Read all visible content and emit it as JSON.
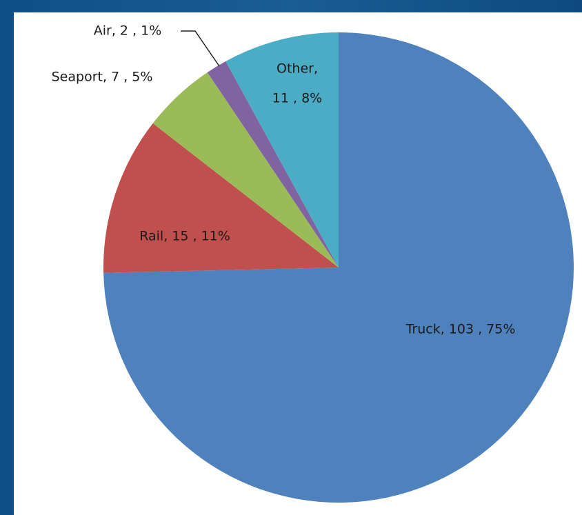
{
  "chart_data": {
    "type": "pie",
    "values": [
      103,
      15,
      7,
      2,
      11
    ],
    "value_labels": [
      "Truck, 103 , 75%",
      "Rail,  15 , 11%",
      "Seaport,  7 , 5%",
      "Air,  2 , 1%",
      [
        "Other,",
        "11 , 8%"
      ]
    ],
    "colors": [
      "#4f81bd",
      "#c0504d",
      "#9bbb59",
      "#8064a2",
      "#4bacc6"
    ]
  }
}
